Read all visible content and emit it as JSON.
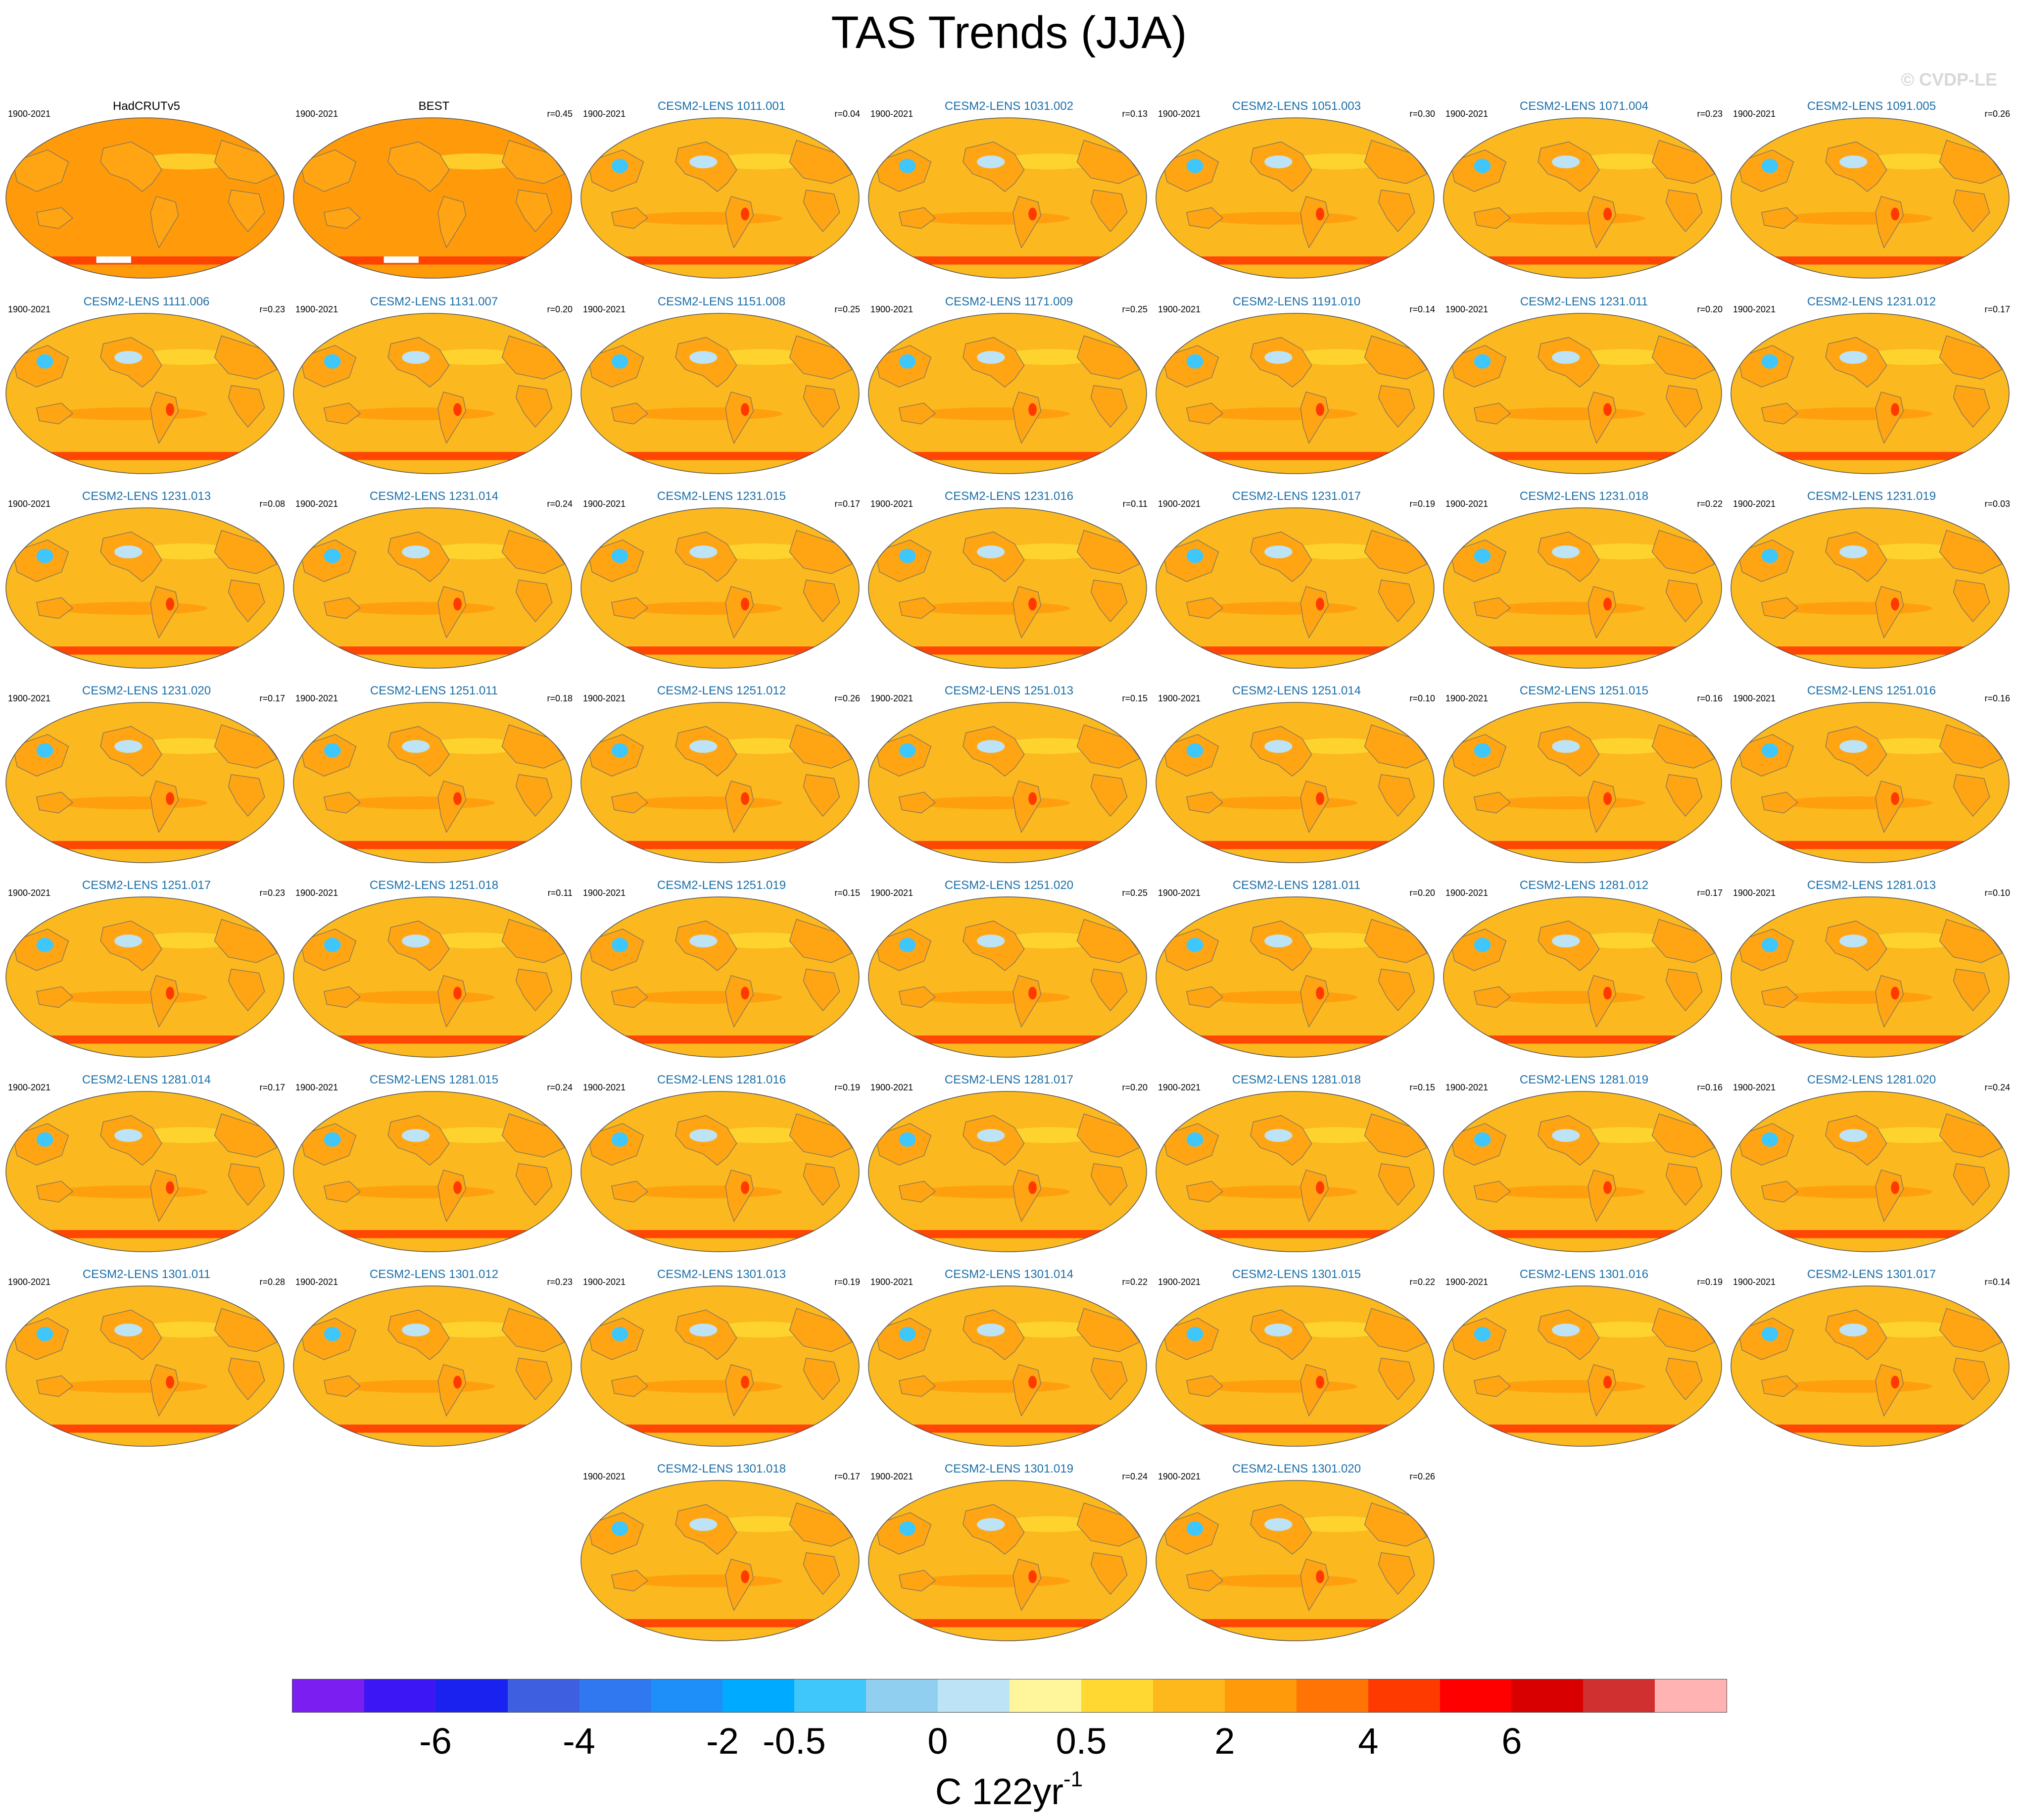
{
  "title": "TAS Trends (JJA)",
  "copyright": "© CVDP-LE",
  "colors": {
    "title_obs": "#000000",
    "title_model": "#1a6ea8",
    "land_outline": "#8a7a55",
    "map_base": "#fbb81f"
  },
  "colorbar": {
    "colors": [
      "#7a1ef2",
      "#3c16f5",
      "#1a22f0",
      "#3d5fe0",
      "#2f78ef",
      "#1e8ff8",
      "#00aaff",
      "#3fc6fb",
      "#90cff0",
      "#bde3f6",
      "#fff59a",
      "#ffd931",
      "#ffb81c",
      "#ff9a0a",
      "#ff7405",
      "#ff3a00",
      "#ff0000",
      "#d80000",
      "#d13030",
      "#ffb3b3"
    ],
    "tick_labels": [
      "-6",
      "-4",
      "-2",
      "-0.5",
      "0",
      "0.5",
      "2",
      "4",
      "6"
    ],
    "units": "C 122yr",
    "units_sup": "-1"
  },
  "chart_data": {
    "type": "heatmap",
    "title": "TAS Trends (JJA)",
    "variable": "surface air temperature trend, June-July-August",
    "colorbar_levels": [
      -6,
      -5,
      -4,
      -3,
      -2,
      -1,
      -0.5,
      -0.25,
      0,
      0.25,
      0.5,
      1,
      2,
      3,
      4,
      5,
      6,
      7,
      8
    ],
    "panels": [
      {
        "name": "HadCRUTv5",
        "period": "1900-2021",
        "r": "",
        "observed": true
      },
      {
        "name": "BEST",
        "period": "1900-2021",
        "r": "r=0.45",
        "observed": true
      },
      {
        "name": "CESM2-LENS 1011.001",
        "period": "1900-2021",
        "r": "r=0.04"
      },
      {
        "name": "CESM2-LENS 1031.002",
        "period": "1900-2021",
        "r": "r=0.13"
      },
      {
        "name": "CESM2-LENS 1051.003",
        "period": "1900-2021",
        "r": "r=0.30"
      },
      {
        "name": "CESM2-LENS 1071.004",
        "period": "1900-2021",
        "r": "r=0.23"
      },
      {
        "name": "CESM2-LENS 1091.005",
        "period": "1900-2021",
        "r": "r=0.26"
      },
      {
        "name": "CESM2-LENS 1111.006",
        "period": "1900-2021",
        "r": "r=0.23"
      },
      {
        "name": "CESM2-LENS 1131.007",
        "period": "1900-2021",
        "r": "r=0.20"
      },
      {
        "name": "CESM2-LENS 1151.008",
        "period": "1900-2021",
        "r": "r=0.25"
      },
      {
        "name": "CESM2-LENS 1171.009",
        "period": "1900-2021",
        "r": "r=0.25"
      },
      {
        "name": "CESM2-LENS 1191.010",
        "period": "1900-2021",
        "r": "r=0.14"
      },
      {
        "name": "CESM2-LENS 1231.011",
        "period": "1900-2021",
        "r": "r=0.20"
      },
      {
        "name": "CESM2-LENS 1231.012",
        "period": "1900-2021",
        "r": "r=0.17"
      },
      {
        "name": "CESM2-LENS 1231.013",
        "period": "1900-2021",
        "r": "r=0.08"
      },
      {
        "name": "CESM2-LENS 1231.014",
        "period": "1900-2021",
        "r": "r=0.24"
      },
      {
        "name": "CESM2-LENS 1231.015",
        "period": "1900-2021",
        "r": "r=0.17"
      },
      {
        "name": "CESM2-LENS 1231.016",
        "period": "1900-2021",
        "r": "r=0.11"
      },
      {
        "name": "CESM2-LENS 1231.017",
        "period": "1900-2021",
        "r": "r=0.19"
      },
      {
        "name": "CESM2-LENS 1231.018",
        "period": "1900-2021",
        "r": "r=0.22"
      },
      {
        "name": "CESM2-LENS 1231.019",
        "period": "1900-2021",
        "r": "r=0.03"
      },
      {
        "name": "CESM2-LENS 1231.020",
        "period": "1900-2021",
        "r": "r=0.17"
      },
      {
        "name": "CESM2-LENS 1251.011",
        "period": "1900-2021",
        "r": "r=0.18"
      },
      {
        "name": "CESM2-LENS 1251.012",
        "period": "1900-2021",
        "r": "r=0.26"
      },
      {
        "name": "CESM2-LENS 1251.013",
        "period": "1900-2021",
        "r": "r=0.15"
      },
      {
        "name": "CESM2-LENS 1251.014",
        "period": "1900-2021",
        "r": "r=0.10"
      },
      {
        "name": "CESM2-LENS 1251.015",
        "period": "1900-2021",
        "r": "r=0.16"
      },
      {
        "name": "CESM2-LENS 1251.016",
        "period": "1900-2021",
        "r": "r=0.16"
      },
      {
        "name": "CESM2-LENS 1251.017",
        "period": "1900-2021",
        "r": "r=0.23"
      },
      {
        "name": "CESM2-LENS 1251.018",
        "period": "1900-2021",
        "r": "r=0.11"
      },
      {
        "name": "CESM2-LENS 1251.019",
        "period": "1900-2021",
        "r": "r=0.15"
      },
      {
        "name": "CESM2-LENS 1251.020",
        "period": "1900-2021",
        "r": "r=0.25"
      },
      {
        "name": "CESM2-LENS 1281.011",
        "period": "1900-2021",
        "r": "r=0.20"
      },
      {
        "name": "CESM2-LENS 1281.012",
        "period": "1900-2021",
        "r": "r=0.17"
      },
      {
        "name": "CESM2-LENS 1281.013",
        "period": "1900-2021",
        "r": "r=0.10"
      },
      {
        "name": "CESM2-LENS 1281.014",
        "period": "1900-2021",
        "r": "r=0.17"
      },
      {
        "name": "CESM2-LENS 1281.015",
        "period": "1900-2021",
        "r": "r=0.24"
      },
      {
        "name": "CESM2-LENS 1281.016",
        "period": "1900-2021",
        "r": "r=0.19"
      },
      {
        "name": "CESM2-LENS 1281.017",
        "period": "1900-2021",
        "r": "r=0.20"
      },
      {
        "name": "CESM2-LENS 1281.018",
        "period": "1900-2021",
        "r": "r=0.15"
      },
      {
        "name": "CESM2-LENS 1281.019",
        "period": "1900-2021",
        "r": "r=0.16"
      },
      {
        "name": "CESM2-LENS 1281.020",
        "period": "1900-2021",
        "r": "r=0.24"
      },
      {
        "name": "CESM2-LENS 1301.011",
        "period": "1900-2021",
        "r": "r=0.28"
      },
      {
        "name": "CESM2-LENS 1301.012",
        "period": "1900-2021",
        "r": "r=0.23"
      },
      {
        "name": "CESM2-LENS 1301.013",
        "period": "1900-2021",
        "r": "r=0.19"
      },
      {
        "name": "CESM2-LENS 1301.014",
        "period": "1900-2021",
        "r": "r=0.22"
      },
      {
        "name": "CESM2-LENS 1301.015",
        "period": "1900-2021",
        "r": "r=0.22"
      },
      {
        "name": "CESM2-LENS 1301.016",
        "period": "1900-2021",
        "r": "r=0.19"
      },
      {
        "name": "CESM2-LENS 1301.017",
        "period": "1900-2021",
        "r": "r=0.14"
      },
      {
        "name": "CESM2-LENS 1301.018",
        "period": "1900-2021",
        "r": "r=0.17"
      },
      {
        "name": "CESM2-LENS 1301.019",
        "period": "1900-2021",
        "r": "r=0.24"
      },
      {
        "name": "CESM2-LENS 1301.020",
        "period": "1900-2021",
        "r": "r=0.26"
      }
    ]
  }
}
